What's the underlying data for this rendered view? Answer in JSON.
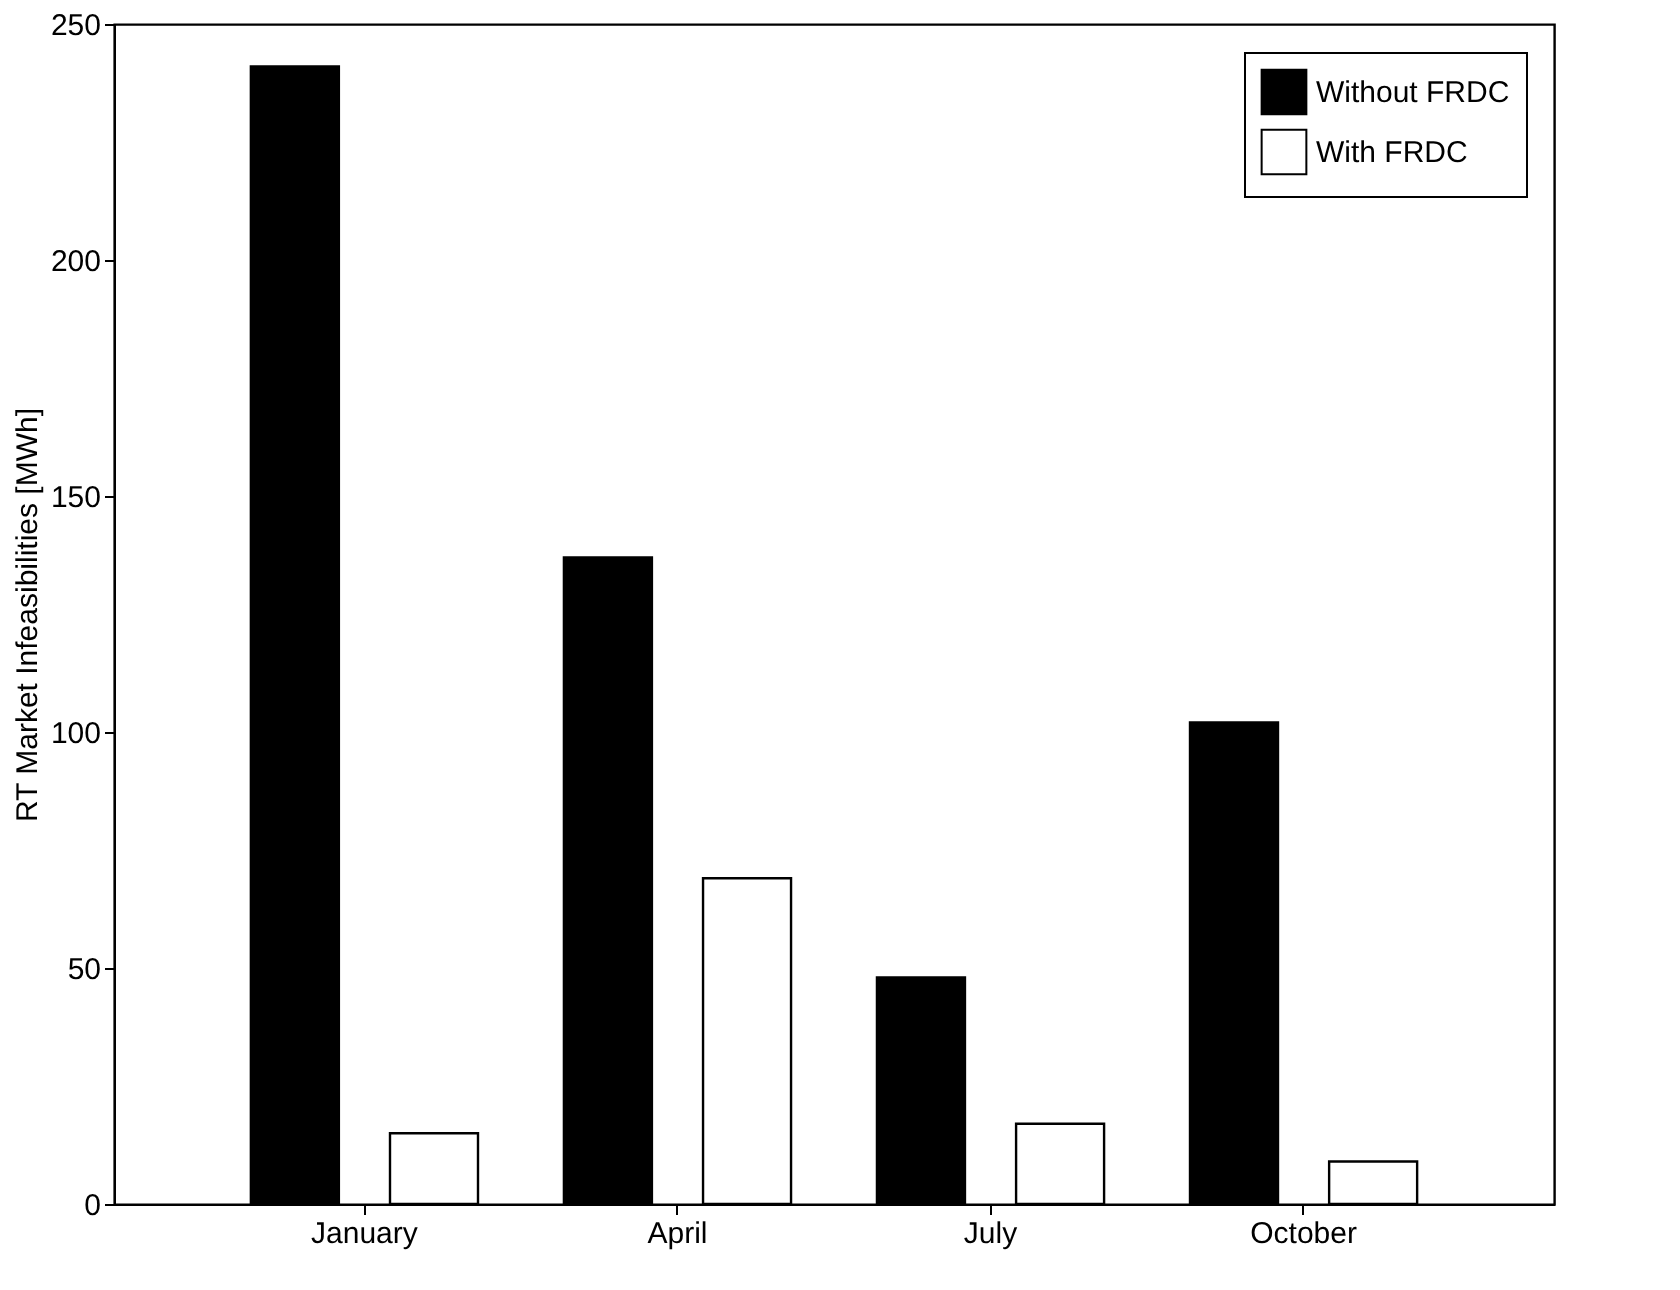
{
  "chart_data": {
    "type": "bar",
    "ylabel": "RT Market Infeasibilities [MWh]",
    "categories": [
      "January",
      "April",
      "July",
      "October"
    ],
    "series": [
      {
        "name": "Without FRDC",
        "color": "#000000",
        "values": [
          241,
          137,
          48,
          102
        ]
      },
      {
        "name": "With FRDC",
        "color": "#ffffff",
        "values": [
          15,
          69,
          17,
          9
        ]
      }
    ],
    "ylim": [
      0,
      250
    ],
    "yticks": [
      0,
      50,
      100,
      150,
      200,
      250
    ],
    "grid": false,
    "legend": "top right"
  }
}
